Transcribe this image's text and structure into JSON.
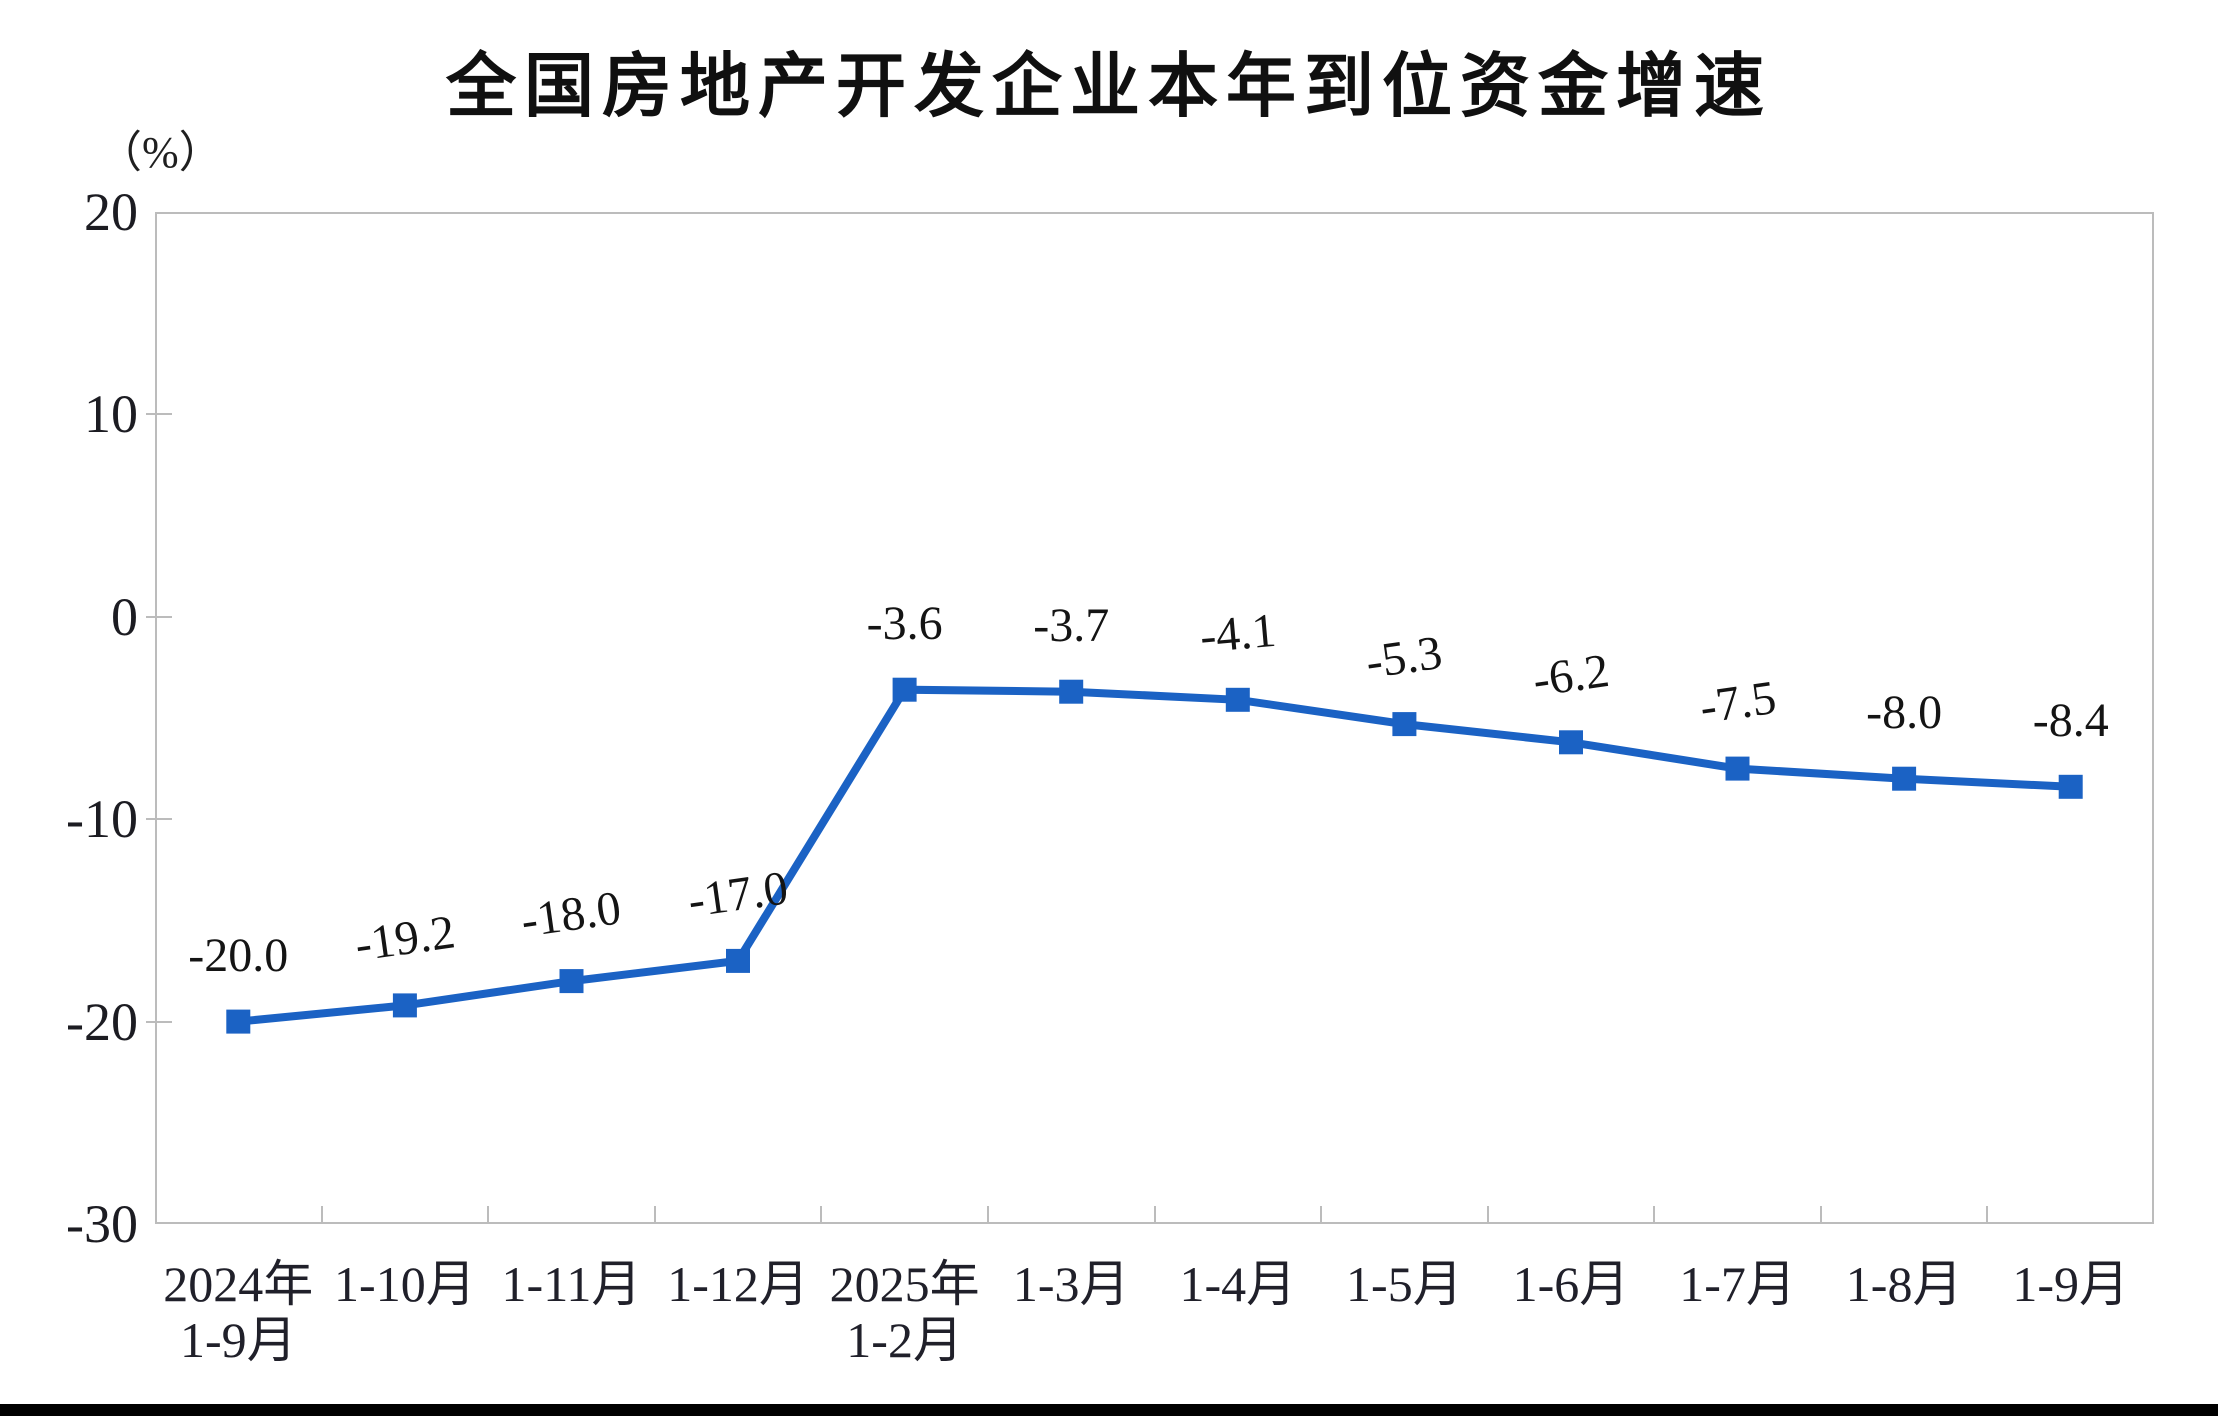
{
  "chart_data": {
    "type": "line",
    "title": "全国房地产开发企业本年到位资金增速",
    "unit_label": "（%）",
    "categories": [
      "2024年\n1-9月",
      "1-10月",
      "1-11月",
      "1-12月",
      "2025年\n1-2月",
      "1-3月",
      "1-4月",
      "1-5月",
      "1-6月",
      "1-7月",
      "1-8月",
      "1-9月"
    ],
    "values": [
      -20.0,
      -19.2,
      -18.0,
      -17.0,
      -3.6,
      -3.7,
      -4.1,
      -5.3,
      -6.2,
      -7.5,
      -8.0,
      -8.4
    ],
    "data_labels": [
      "-20.0",
      "-19.2",
      "-18.0",
      "-17.0",
      "-3.6",
      "-3.7",
      "-4.1",
      "-5.3",
      "-6.2",
      "-7.5",
      "-8.0",
      "-8.4"
    ],
    "xlabel": "",
    "ylabel": "（%）",
    "yticks": [
      20,
      10,
      0,
      -10,
      -20,
      -30
    ],
    "ylim": [
      -30,
      20
    ],
    "grid": false,
    "legend": "none",
    "marker": "square",
    "line_color": "#1b62c4",
    "axis_color": "#bcbcbc",
    "bottom_bar_color": "#000000"
  }
}
